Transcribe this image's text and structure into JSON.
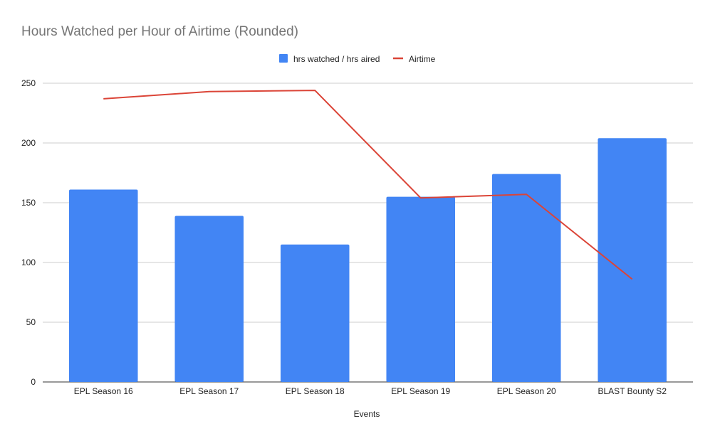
{
  "chart_data": {
    "type": "bar",
    "title": "Hours Watched per Hour of Airtime (Rounded)",
    "xlabel": "Events",
    "ylabel": "",
    "categories": [
      "EPL Season 16",
      "EPL Season 17",
      "EPL Season 18",
      "EPL Season 19",
      "EPL Season 20",
      "BLAST Bounty S2"
    ],
    "ylim": [
      0,
      250
    ],
    "yticks": [
      0,
      50,
      100,
      150,
      200,
      250
    ],
    "grid": true,
    "legend_position": "top",
    "series": [
      {
        "name": "hrs watched / hrs aired",
        "type": "bar",
        "color": "#4285f4",
        "values": [
          161,
          139,
          115,
          155,
          174,
          204
        ]
      },
      {
        "name": "Airtime",
        "type": "line",
        "color": "#db4437",
        "values": [
          237,
          243,
          244,
          154,
          157,
          86
        ]
      }
    ]
  }
}
